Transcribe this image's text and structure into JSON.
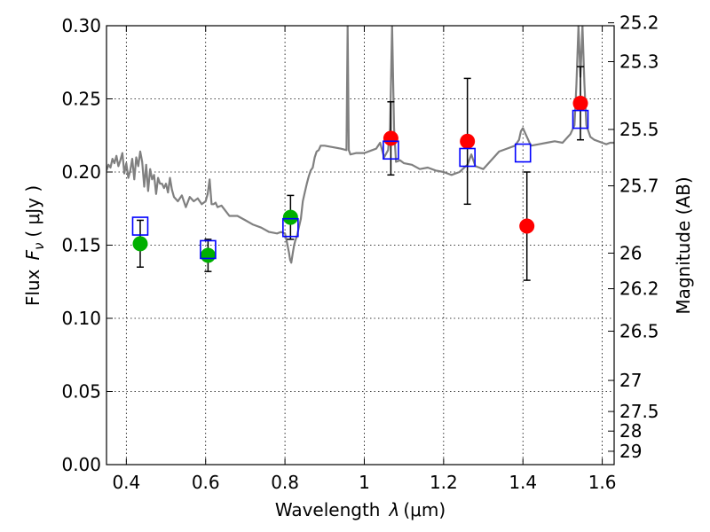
{
  "chart_data": {
    "type": "scatter",
    "xlabel": "Wavelength",
    "xlabel_symbol": "λ",
    "xlabel_unit": "(μm)",
    "ylabel": "Flux",
    "ylabel_symbol": "F",
    "ylabel_symbol_sub": "ν",
    "ylabel_unit": "( μJy )",
    "y2label": "Magnitude (AB)",
    "xlim": [
      0.35,
      1.63
    ],
    "ylim": [
      0.0,
      0.3
    ],
    "grid": true,
    "x_ticks": [
      0.4,
      0.6,
      0.8,
      1.0,
      1.2,
      1.4,
      1.6
    ],
    "x_tick_labels": [
      "0.4",
      "0.6",
      "0.8",
      "1",
      "1.2",
      "1.4",
      "1.6"
    ],
    "y_ticks": [
      0.0,
      0.05,
      0.1,
      0.15,
      0.2,
      0.25,
      0.3
    ],
    "y_tick_labels": [
      "0.00",
      "0.05",
      "0.10",
      "0.15",
      "0.20",
      "0.25",
      "0.30"
    ],
    "y2_ticks": [
      25.2,
      25.3,
      25.5,
      25.7,
      26,
      26.2,
      26.5,
      27,
      27.5,
      28,
      29
    ],
    "y2_tick_labels": [
      "25.2",
      "25.3",
      "25.5",
      "25.7",
      "26",
      "26.2",
      "26.5",
      "27",
      "27.5",
      "28",
      "29"
    ],
    "series": [
      {
        "marker": "circle",
        "color": "#00b000",
        "points": [
          {
            "x": 0.435,
            "y": 0.151,
            "yerr": 0.016
          },
          {
            "x": 0.606,
            "y": 0.143,
            "yerr": 0.011
          },
          {
            "x": 0.814,
            "y": 0.169,
            "yerr": 0.015
          }
        ]
      },
      {
        "marker": "circle",
        "color": "#ff0000",
        "points": [
          {
            "x": 1.067,
            "y": 0.223,
            "yerr": 0.025
          },
          {
            "x": 1.26,
            "y": 0.221,
            "yerr": 0.043
          },
          {
            "x": 1.41,
            "y": 0.163,
            "yerr": 0.037
          },
          {
            "x": 1.545,
            "y": 0.247,
            "yerr": 0.025
          }
        ]
      },
      {
        "marker": "square-open",
        "color": "#0000ff",
        "points": [
          {
            "x": 0.435,
            "y": 0.163
          },
          {
            "x": 0.606,
            "y": 0.147
          },
          {
            "x": 0.814,
            "y": 0.162
          },
          {
            "x": 1.067,
            "y": 0.215
          },
          {
            "x": 1.26,
            "y": 0.21
          },
          {
            "x": 1.4,
            "y": 0.213
          },
          {
            "x": 1.545,
            "y": 0.236
          }
        ]
      },
      {
        "type": "line",
        "color": "#808080",
        "x": [
          0.35,
          0.355,
          0.36,
          0.365,
          0.37,
          0.375,
          0.38,
          0.385,
          0.39,
          0.395,
          0.4,
          0.405,
          0.41,
          0.415,
          0.42,
          0.425,
          0.43,
          0.435,
          0.44,
          0.445,
          0.45,
          0.455,
          0.46,
          0.465,
          0.47,
          0.475,
          0.48,
          0.485,
          0.49,
          0.495,
          0.5,
          0.505,
          0.51,
          0.515,
          0.52,
          0.53,
          0.54,
          0.55,
          0.56,
          0.57,
          0.58,
          0.59,
          0.6,
          0.605,
          0.61,
          0.615,
          0.62,
          0.625,
          0.63,
          0.64,
          0.66,
          0.68,
          0.7,
          0.72,
          0.74,
          0.76,
          0.78,
          0.79,
          0.8,
          0.805,
          0.81,
          0.813,
          0.816,
          0.82,
          0.823,
          0.826,
          0.83,
          0.835,
          0.84,
          0.845,
          0.85,
          0.855,
          0.86,
          0.865,
          0.87,
          0.875,
          0.88,
          0.885,
          0.89,
          0.9,
          0.92,
          0.94,
          0.955,
          0.958,
          0.961,
          0.965,
          0.98,
          1.0,
          1.02,
          1.03,
          1.04,
          1.05,
          1.06,
          1.065,
          1.07,
          1.075,
          1.08,
          1.09,
          1.1,
          1.12,
          1.14,
          1.16,
          1.18,
          1.2,
          1.22,
          1.24,
          1.26,
          1.27,
          1.28,
          1.3,
          1.32,
          1.34,
          1.36,
          1.38,
          1.39,
          1.395,
          1.4,
          1.41,
          1.42,
          1.44,
          1.46,
          1.48,
          1.5,
          1.52,
          1.53,
          1.535,
          1.54,
          1.545,
          1.55,
          1.555,
          1.56,
          1.57,
          1.58,
          1.6,
          1.61,
          1.62,
          1.63
        ],
        "y": [
          0.201,
          0.205,
          0.203,
          0.209,
          0.206,
          0.211,
          0.204,
          0.208,
          0.213,
          0.199,
          0.206,
          0.196,
          0.201,
          0.209,
          0.195,
          0.21,
          0.204,
          0.214,
          0.207,
          0.19,
          0.205,
          0.187,
          0.202,
          0.195,
          0.198,
          0.185,
          0.196,
          0.192,
          0.192,
          0.189,
          0.192,
          0.186,
          0.196,
          0.188,
          0.183,
          0.18,
          0.184,
          0.176,
          0.183,
          0.18,
          0.182,
          0.178,
          0.18,
          0.185,
          0.195,
          0.178,
          0.178,
          0.179,
          0.176,
          0.177,
          0.17,
          0.17,
          0.167,
          0.164,
          0.162,
          0.159,
          0.158,
          0.159,
          0.158,
          0.152,
          0.145,
          0.14,
          0.138,
          0.145,
          0.15,
          0.153,
          0.156,
          0.162,
          0.168,
          0.18,
          0.186,
          0.192,
          0.197,
          0.201,
          0.203,
          0.21,
          0.214,
          0.215,
          0.218,
          0.218,
          0.217,
          0.216,
          0.215,
          0.3,
          0.215,
          0.212,
          0.213,
          0.213,
          0.215,
          0.216,
          0.22,
          0.21,
          0.215,
          0.23,
          0.3,
          0.23,
          0.207,
          0.208,
          0.206,
          0.205,
          0.202,
          0.203,
          0.201,
          0.2,
          0.198,
          0.2,
          0.205,
          0.212,
          0.204,
          0.202,
          0.208,
          0.214,
          0.216,
          0.218,
          0.222,
          0.228,
          0.23,
          0.224,
          0.218,
          0.219,
          0.22,
          0.221,
          0.22,
          0.226,
          0.232,
          0.26,
          0.3,
          0.265,
          0.3,
          0.26,
          0.232,
          0.224,
          0.222,
          0.22,
          0.219,
          0.22,
          0.22
        ]
      }
    ]
  }
}
